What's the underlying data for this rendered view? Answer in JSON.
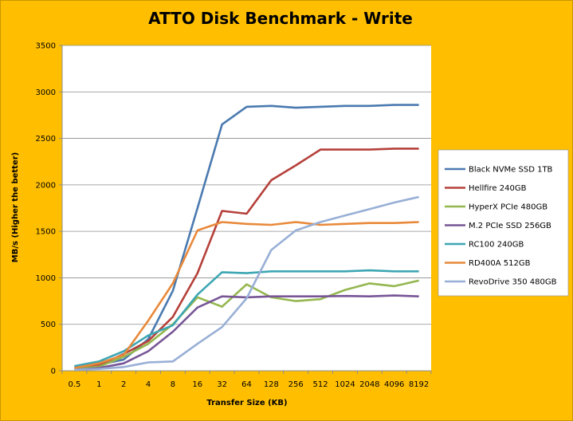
{
  "chart_data": {
    "type": "line",
    "title": "ATTO Disk Benchmark - Write",
    "xlabel": "Transfer Size (KB)",
    "ylabel": "MB/s (Higher the better)",
    "ylim": [
      0,
      3500
    ],
    "yticks": [
      0,
      500,
      1000,
      1500,
      2000,
      2500,
      3000,
      3500
    ],
    "grid": true,
    "legend": "right",
    "categories": [
      "0.5",
      "1",
      "2",
      "4",
      "8",
      "16",
      "32",
      "64",
      "128",
      "256",
      "512",
      "1024",
      "2048",
      "4096",
      "8192"
    ],
    "series": [
      {
        "name": "Black NVMe SSD 1TB",
        "color": "#4a7ab0",
        "values": [
          40,
          65,
          120,
          340,
          860,
          1750,
          2650,
          2840,
          2850,
          2830,
          2840,
          2850,
          2850,
          2860,
          2860
        ]
      },
      {
        "name": "Hellfire 240GB",
        "color": "#b5403a",
        "values": [
          20,
          60,
          180,
          320,
          580,
          1050,
          1720,
          1690,
          2050,
          2210,
          2380,
          2380,
          2380,
          2390,
          2390
        ]
      },
      {
        "name": "HyperX PCIe 480GB",
        "color": "#95b74f",
        "values": [
          20,
          45,
          150,
          290,
          500,
          790,
          690,
          930,
          790,
          750,
          770,
          870,
          940,
          910,
          970
        ]
      },
      {
        "name": "M.2 PCIe SSD 256GB",
        "color": "#775596",
        "values": [
          10,
          30,
          80,
          210,
          420,
          680,
          800,
          790,
          800,
          800,
          800,
          805,
          800,
          810,
          800
        ]
      },
      {
        "name": "RC100 240GB",
        "color": "#3da6b3",
        "values": [
          50,
          100,
          210,
          380,
          490,
          820,
          1060,
          1050,
          1070,
          1070,
          1070,
          1070,
          1080,
          1070,
          1070
        ]
      },
      {
        "name": "RD400A 512GB",
        "color": "#e8893a",
        "values": [
          30,
          80,
          170,
          540,
          940,
          1510,
          1600,
          1580,
          1570,
          1600,
          1570,
          1580,
          1590,
          1590,
          1600
        ]
      },
      {
        "name": "RevoDrive 350 480GB",
        "color": "#98afd6",
        "values": [
          10,
          20,
          40,
          90,
          100,
          290,
          470,
          780,
          1300,
          1510,
          1600,
          1670,
          1740,
          1810,
          1870
        ]
      }
    ]
  }
}
